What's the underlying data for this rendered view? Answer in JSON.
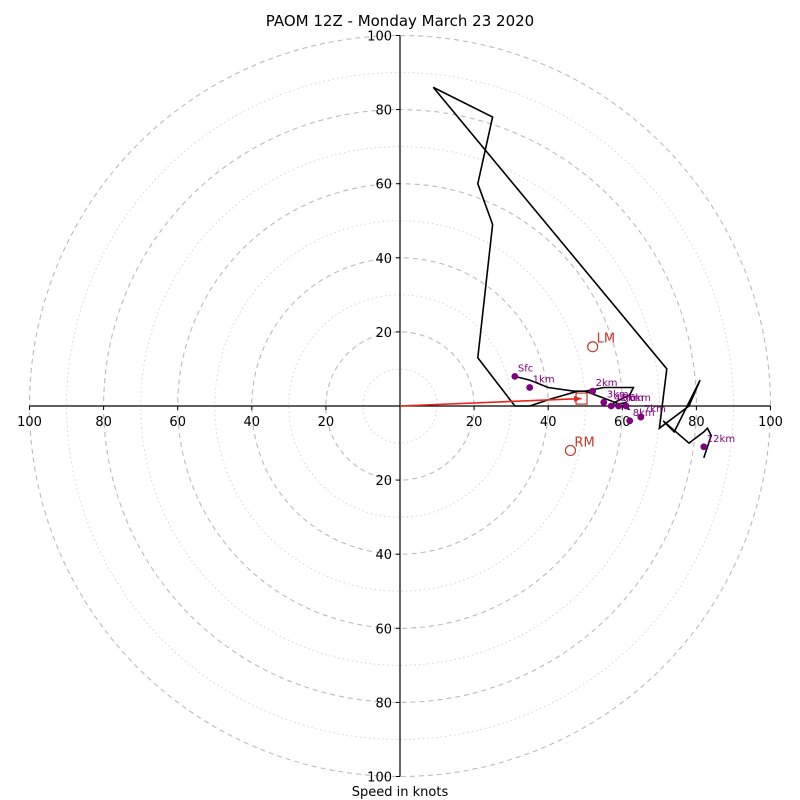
{
  "chart_data": {
    "type": "hodograph",
    "title": "PAOM 12Z - Monday March 23 2020",
    "xlabel": "Speed in knots",
    "ring_labels": [
      "20",
      "40",
      "60",
      "80",
      "100"
    ],
    "axis_range": [
      -100,
      100
    ],
    "grid": true,
    "colors": {
      "hodograph_line": "#000000",
      "height_points": "#800080",
      "motion_markers": "#c0392b",
      "shear_vector": "#e8251a",
      "grid": "#bbbbbb"
    },
    "hodograph": {
      "u": [
        31,
        35,
        40,
        47,
        50,
        55,
        63,
        62,
        58,
        57,
        61,
        60,
        62,
        58,
        50,
        48,
        41,
        35,
        31,
        21,
        25,
        21,
        25,
        9,
        72,
        70,
        78,
        81,
        74,
        71,
        78,
        82,
        83,
        84,
        82
      ],
      "v": [
        8,
        7,
        5,
        4,
        4,
        5,
        5,
        3,
        1,
        0,
        1,
        0,
        -1,
        1,
        4,
        4,
        2,
        0,
        0,
        13,
        49,
        60,
        78,
        86,
        10,
        -6,
        0,
        7,
        -7,
        -4,
        -10,
        -7,
        -6,
        -8,
        -14
      ]
    },
    "height_points": [
      {
        "label": "Sfc",
        "u": 31,
        "v": 8
      },
      {
        "label": "1km",
        "u": 35,
        "v": 5
      },
      {
        "label": "2km",
        "u": 52,
        "v": 4
      },
      {
        "label": "3km",
        "u": 55,
        "v": 1
      },
      {
        "label": "4km",
        "u": 57,
        "v": 0
      },
      {
        "label": "5km",
        "u": 59,
        "v": 0
      },
      {
        "label": "6km",
        "u": 61,
        "v": 0
      },
      {
        "label": "7km",
        "u": 65,
        "v": -3
      },
      {
        "label": "8km",
        "u": 62,
        "v": -4
      },
      {
        "label": "12km",
        "u": 82,
        "v": -11
      }
    ],
    "storm_motion": [
      {
        "label": "LM",
        "u": 52,
        "v": 16
      },
      {
        "label": "RM",
        "u": 46,
        "v": -12
      }
    ],
    "mean_wind": {
      "u": 49,
      "v": 2
    },
    "shear_vector": {
      "u0": 0,
      "v0": 0,
      "u1": 49,
      "v1": 2
    }
  }
}
